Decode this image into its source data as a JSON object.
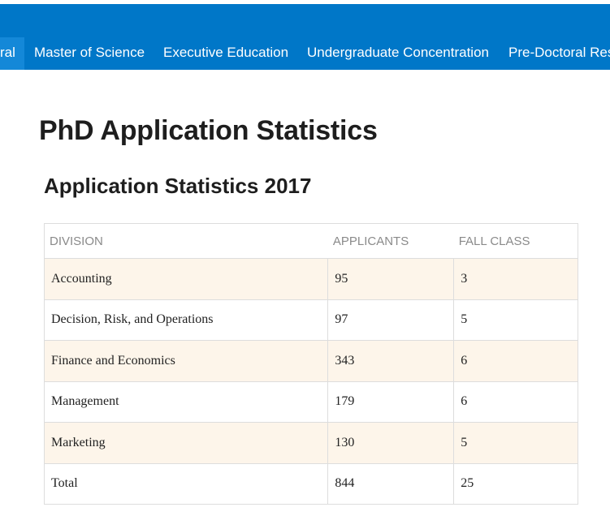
{
  "nav": {
    "items": [
      "ral",
      "Master of Science",
      "Executive Education",
      "Undergraduate Concentration",
      "Pre-Doctoral Res"
    ]
  },
  "header": {
    "title": "PhD Application Statistics",
    "subtitle": "Application Statistics 2017"
  },
  "table": {
    "columns": [
      "DIVISION",
      "APPLICANTS",
      "FALL CLASS"
    ],
    "rows": [
      [
        "Accounting",
        95,
        3
      ],
      [
        "Decision, Risk, and Operations",
        97,
        5
      ],
      [
        "Finance and Economics",
        343,
        6
      ],
      [
        "Management",
        179,
        6
      ],
      [
        "Marketing",
        130,
        5
      ],
      [
        "Total",
        844,
        25
      ]
    ]
  }
}
